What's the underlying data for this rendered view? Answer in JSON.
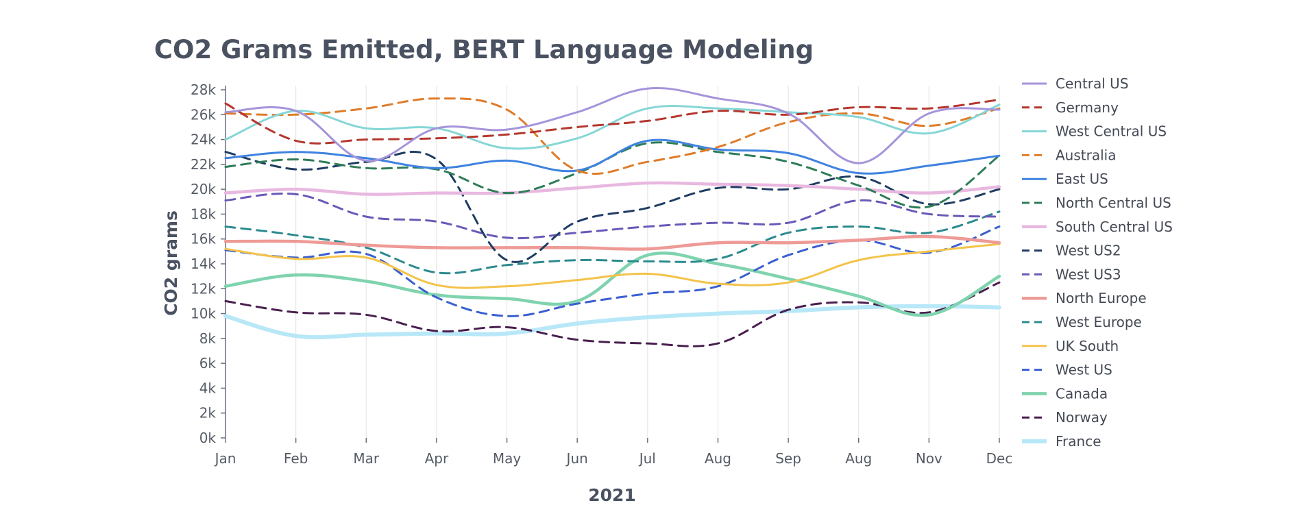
{
  "chart_data": {
    "type": "line",
    "title": "CO2 Grams Emitted, BERT Language Modeling",
    "xlabel": "2021",
    "ylabel": "CO2 grams",
    "categories": [
      "Jan",
      "Feb",
      "Mar",
      "Apr",
      "May",
      "Jun",
      "Jul",
      "Aug",
      "Sep",
      "Aug",
      "Nov",
      "Dec"
    ],
    "ylim": [
      0,
      28000
    ],
    "y_ticks": [
      0,
      2000,
      4000,
      6000,
      8000,
      10000,
      12000,
      14000,
      16000,
      18000,
      20000,
      22000,
      24000,
      26000,
      28000
    ],
    "y_tick_labels": [
      "0k",
      "2k",
      "4k",
      "6k",
      "8k",
      "10k",
      "12k",
      "14k",
      "16k",
      "18k",
      "20k",
      "22k",
      "24k",
      "26k",
      "28k"
    ],
    "grid": "vertical",
    "legend_position": "right",
    "series": [
      {
        "name": "Central US",
        "color": "#a594db",
        "style": "solid",
        "width": 3,
        "values": [
          26200,
          26300,
          22300,
          24900,
          24800,
          26200,
          28100,
          27300,
          26100,
          22100,
          26100,
          26400
        ]
      },
      {
        "name": "Germany",
        "color": "#b5372f",
        "style": "dashed",
        "width": 3,
        "values": [
          26900,
          23900,
          24000,
          24100,
          24400,
          25000,
          25500,
          26300,
          26000,
          26600,
          26500,
          27200
        ]
      },
      {
        "name": "West Central US",
        "color": "#86d6d6",
        "style": "solid",
        "width": 3,
        "values": [
          24000,
          26300,
          24900,
          24900,
          23300,
          24100,
          26500,
          26500,
          26200,
          25800,
          24500,
          26800
        ]
      },
      {
        "name": "Australia",
        "color": "#df7c2a",
        "style": "dashed",
        "width": 3,
        "values": [
          26100,
          26000,
          26500,
          27300,
          26400,
          21500,
          22200,
          23400,
          25400,
          26100,
          25100,
          26500
        ]
      },
      {
        "name": "East US",
        "color": "#3f82e0",
        "style": "solid",
        "width": 3,
        "values": [
          22500,
          23000,
          22500,
          21700,
          22300,
          21500,
          23900,
          23200,
          22900,
          21300,
          21900,
          22700
        ]
      },
      {
        "name": "North Central US",
        "color": "#2e7d58",
        "style": "dashed",
        "width": 3,
        "values": [
          21800,
          22400,
          21700,
          21600,
          19700,
          21300,
          23700,
          23000,
          22200,
          20300,
          18600,
          22700
        ]
      },
      {
        "name": "South Central US",
        "color": "#e8b8e0",
        "style": "solid",
        "width": 4.5,
        "values": [
          19700,
          20000,
          19600,
          19700,
          19700,
          20100,
          20500,
          20400,
          20300,
          20000,
          19700,
          20200
        ]
      },
      {
        "name": "West US2",
        "color": "#1f3d63",
        "style": "dashed",
        "width": 3,
        "values": [
          23000,
          21600,
          22200,
          22400,
          14300,
          17400,
          18500,
          20100,
          20000,
          21000,
          18800,
          20000
        ]
      },
      {
        "name": "West US3",
        "color": "#6b58b8",
        "style": "dashed",
        "width": 3,
        "values": [
          19100,
          19600,
          17800,
          17400,
          16100,
          16500,
          17000,
          17300,
          17300,
          19100,
          18000,
          17800
        ]
      },
      {
        "name": "North Europe",
        "color": "#ee9a96",
        "style": "solid",
        "width": 4.5,
        "values": [
          15800,
          15800,
          15500,
          15300,
          15300,
          15300,
          15200,
          15700,
          15700,
          15900,
          16200,
          15700
        ]
      },
      {
        "name": "West Europe",
        "color": "#2b8a8e",
        "style": "dashed",
        "width": 3,
        "values": [
          17000,
          16300,
          15300,
          13300,
          13900,
          14300,
          14200,
          14400,
          16500,
          17000,
          16500,
          18200
        ]
      },
      {
        "name": "UK South",
        "color": "#f3c34a",
        "style": "solid",
        "width": 3,
        "values": [
          15200,
          14400,
          14500,
          12300,
          12200,
          12700,
          13200,
          12400,
          12500,
          14300,
          15000,
          15600
        ]
      },
      {
        "name": "West US",
        "color": "#3a5fd0",
        "style": "dashed",
        "width": 3,
        "values": [
          15100,
          14500,
          14800,
          11300,
          9800,
          10800,
          11600,
          12200,
          14700,
          15900,
          14900,
          17000
        ]
      },
      {
        "name": "Canada",
        "color": "#7fd3ae",
        "style": "solid",
        "width": 4.5,
        "values": [
          12200,
          13100,
          12600,
          11500,
          11200,
          11000,
          14700,
          14000,
          12800,
          11400,
          9900,
          13000
        ]
      },
      {
        "name": "Norway",
        "color": "#4a1f4f",
        "style": "dashed",
        "width": 3,
        "values": [
          11000,
          10100,
          9900,
          8600,
          8900,
          7900,
          7600,
          7600,
          10300,
          10900,
          10100,
          12500
        ]
      },
      {
        "name": "France",
        "color": "#b8e8f8",
        "style": "solid",
        "width": 6,
        "values": [
          9800,
          8200,
          8300,
          8400,
          8400,
          9200,
          9700,
          10000,
          10200,
          10500,
          10600,
          10500
        ]
      }
    ]
  }
}
